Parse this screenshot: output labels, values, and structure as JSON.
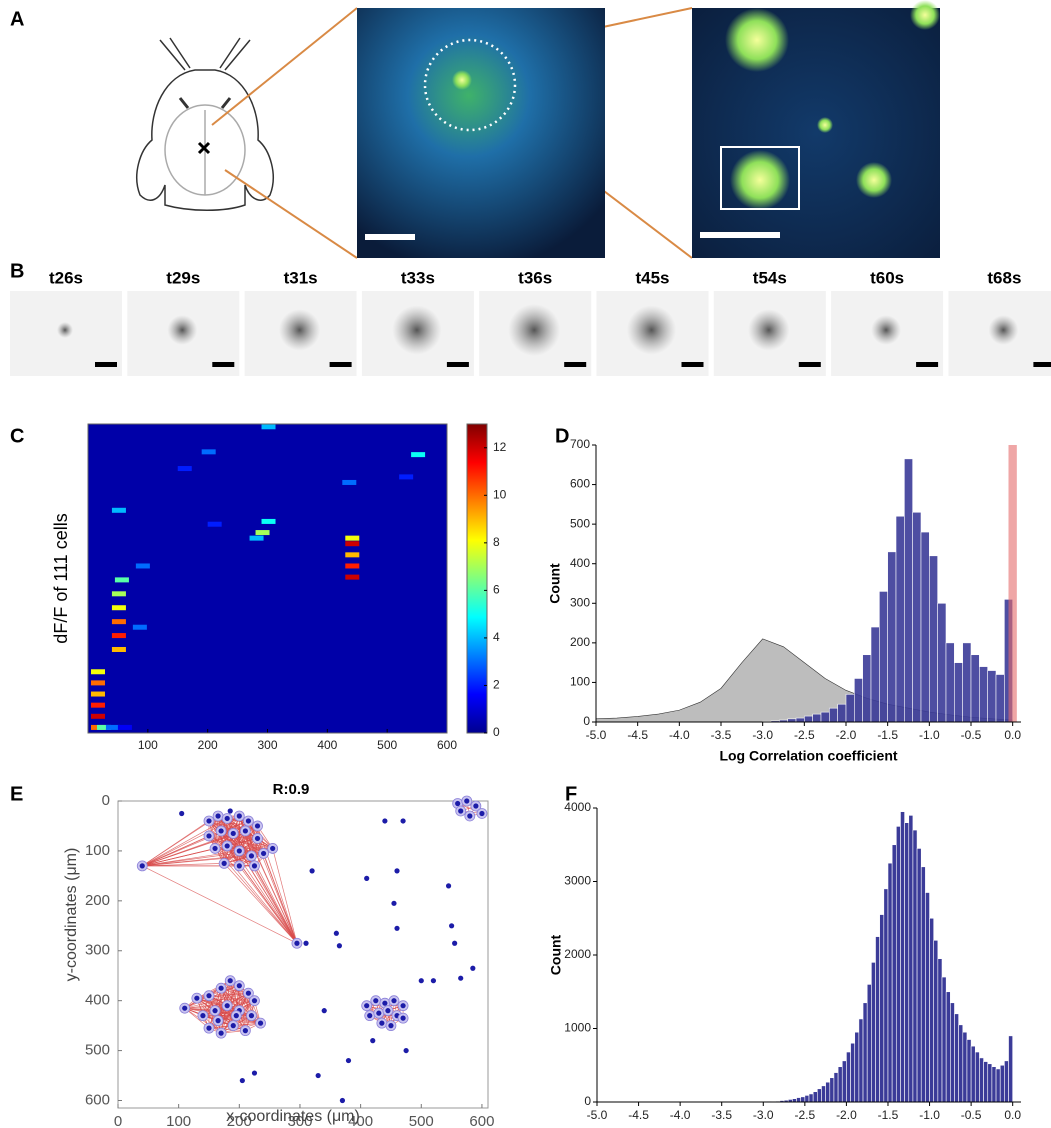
{
  "panels": [
    "A",
    "B",
    "C",
    "D",
    "E",
    "F"
  ],
  "time_labels": [
    "t26s",
    "t29s",
    "t31s",
    "t33s",
    "t36s",
    "t45s",
    "t54s",
    "t60s",
    "t68s"
  ],
  "chart_data": [
    {
      "type": "heatmap",
      "ylabel": "dF/F of 111 cells",
      "xlim": [
        0,
        600
      ],
      "xticks": [
        100,
        200,
        300,
        400,
        500,
        600
      ],
      "ylim": [
        0,
        111
      ],
      "clim": [
        0,
        13
      ],
      "cticks": [
        0,
        2,
        4,
        6,
        8,
        10,
        12
      ],
      "x": [
        5,
        15,
        30,
        50,
        5,
        5,
        5,
        5,
        5,
        40,
        40,
        40,
        40,
        40,
        45,
        280,
        270,
        290,
        430,
        430,
        430,
        430,
        430,
        40,
        200,
        75,
        425,
        540,
        190,
        290,
        520,
        150,
        80
      ],
      "y": [
        2,
        2,
        2,
        2,
        6,
        10,
        14,
        18,
        22,
        30,
        35,
        40,
        45,
        50,
        55,
        72,
        70,
        76,
        56,
        60,
        64,
        68,
        70,
        80,
        75,
        38,
        90,
        100,
        101,
        110,
        92,
        95,
        60
      ],
      "values": [
        10,
        6,
        3,
        1.5,
        12,
        11,
        9,
        10,
        8,
        9,
        11,
        10,
        8,
        7,
        6,
        7,
        4,
        5,
        12,
        11,
        9,
        12,
        8,
        4,
        2,
        3,
        3,
        5,
        3,
        4,
        2,
        2,
        3
      ]
    },
    {
      "type": "histogram",
      "xlabel": "Log Correlation coefficient",
      "ylabel": "Count",
      "xlim": [
        -5.0,
        0.1
      ],
      "xticks": [
        {
          "value": -5,
          "label": "-5.0"
        },
        {
          "value": -4.5,
          "label": "-4.5"
        },
        {
          "value": -4,
          "label": "-4.0"
        },
        {
          "value": -3.5,
          "label": "-3.5"
        },
        {
          "value": -3,
          "label": "-3.0"
        },
        {
          "value": -2.5,
          "label": "-2.5"
        },
        {
          "value": -2,
          "label": "-2.0"
        },
        {
          "value": -1.5,
          "label": "-1.5"
        },
        {
          "value": -1,
          "label": "-1.0"
        },
        {
          "value": -0.5,
          "label": "-0.5"
        },
        {
          "value": 0,
          "label": "0.0"
        }
      ],
      "ylim": [
        0,
        700
      ],
      "yticks": [
        0,
        100,
        200,
        300,
        400,
        500,
        600,
        700
      ],
      "bins": [
        -3.0,
        -2.9,
        -2.8,
        -2.7,
        -2.6,
        -2.5,
        -2.4,
        -2.3,
        -2.2,
        -2.1,
        -2.0,
        -1.9,
        -1.8,
        -1.7,
        -1.6,
        -1.5,
        -1.4,
        -1.3,
        -1.2,
        -1.1,
        -1.0,
        -0.9,
        -0.8,
        -0.7,
        -0.6,
        -0.5,
        -0.4,
        -0.3,
        -0.2,
        -0.1,
        0.0
      ],
      "values": [
        2,
        3,
        5,
        8,
        10,
        15,
        20,
        25,
        35,
        45,
        70,
        110,
        170,
        240,
        330,
        430,
        520,
        665,
        530,
        480,
        420,
        300,
        200,
        150,
        200,
        170,
        140,
        130,
        120,
        310
      ],
      "color": "#3b3b98",
      "area": {
        "x": [
          -5.0,
          -4.75,
          -4.5,
          -4.25,
          -4.0,
          -3.75,
          -3.5,
          -3.25,
          -3.0,
          -2.75,
          -2.5,
          -2.25,
          -2.0,
          -1.75,
          -1.5,
          -1.25,
          -1.0,
          -0.75,
          -0.5,
          -0.25,
          0.0
        ],
        "values": [
          8,
          10,
          14,
          20,
          30,
          50,
          85,
          150,
          210,
          190,
          150,
          110,
          80,
          60,
          45,
          35,
          25,
          18,
          12,
          8,
          5
        ],
        "color": "#bdbdbd"
      },
      "highlight": {
        "xlim": [
          -0.05,
          0.05
        ],
        "color": "#e46a6a"
      }
    },
    {
      "type": "scatter",
      "title": "R:0.9",
      "xlabel": "x-coordinates (μm)",
      "ylabel": "y-coordinates (μm)",
      "xlim": [
        0,
        610
      ],
      "xticks": [
        0,
        100,
        200,
        300,
        400,
        500,
        600
      ],
      "ylim": [
        0,
        615
      ],
      "yticks": [
        0,
        100,
        200,
        300,
        400,
        500,
        600
      ],
      "y_reversed": true,
      "color": "#1c1ca8",
      "edge_color": "#d84a4a",
      "x": [
        40,
        295,
        150,
        165,
        180,
        200,
        215,
        230,
        150,
        170,
        190,
        210,
        230,
        255,
        160,
        180,
        200,
        220,
        240,
        175,
        200,
        225,
        110,
        130,
        150,
        170,
        185,
        200,
        215,
        225,
        140,
        160,
        180,
        200,
        220,
        235,
        150,
        170,
        190,
        210,
        165,
        195,
        410,
        425,
        440,
        455,
        470,
        415,
        430,
        445,
        460,
        435,
        450,
        470,
        560,
        575,
        590,
        600,
        580,
        565,
        105,
        185,
        320,
        310,
        330,
        340,
        360,
        365,
        370,
        380,
        410,
        420,
        440,
        455,
        460,
        460,
        470,
        475,
        500,
        520,
        545,
        550,
        555,
        565,
        585,
        205,
        225
      ],
      "y": [
        130,
        285,
        40,
        30,
        35,
        30,
        40,
        50,
        70,
        60,
        65,
        60,
        75,
        95,
        95,
        90,
        100,
        110,
        105,
        125,
        130,
        130,
        415,
        395,
        390,
        375,
        360,
        370,
        385,
        400,
        430,
        420,
        410,
        420,
        430,
        445,
        455,
        465,
        450,
        460,
        440,
        430,
        410,
        400,
        405,
        400,
        410,
        430,
        425,
        420,
        430,
        445,
        450,
        435,
        5,
        0,
        10,
        25,
        30,
        20,
        25,
        20,
        140,
        285,
        550,
        420,
        265,
        290,
        600,
        520,
        155,
        480,
        40,
        205,
        255,
        140,
        40,
        500,
        360,
        360,
        170,
        250,
        285,
        355,
        335,
        560,
        545
      ],
      "clusters": [
        [
          0,
          1,
          2,
          3,
          4,
          5,
          6,
          7,
          8,
          9,
          10,
          11,
          12,
          13,
          14,
          15,
          16,
          17,
          18,
          19,
          20,
          21
        ],
        [
          22,
          23,
          24,
          25,
          26,
          27,
          28,
          29,
          30,
          31,
          32,
          33,
          34,
          35,
          36,
          37,
          38,
          39,
          40,
          41
        ],
        [
          42,
          43,
          44,
          45,
          46,
          47,
          48,
          49,
          50,
          51,
          52,
          53
        ],
        [
          54,
          55,
          56,
          57,
          58,
          59
        ]
      ]
    },
    {
      "type": "histogram",
      "xlabel": "Log Correlation coefficient",
      "ylabel": "Count",
      "xlim": [
        -5.0,
        0.1
      ],
      "xticks": [
        {
          "value": -5,
          "label": "-5.0"
        },
        {
          "value": -4.5,
          "label": "-4.5"
        },
        {
          "value": -4,
          "label": "-4.0"
        },
        {
          "value": -3.5,
          "label": "-3.5"
        },
        {
          "value": -3,
          "label": "-3.0"
        },
        {
          "value": -2.5,
          "label": "-2.5"
        },
        {
          "value": -2,
          "label": "-2.0"
        },
        {
          "value": -1.5,
          "label": "-1.5"
        },
        {
          "value": -1,
          "label": "-1.0"
        },
        {
          "value": -0.5,
          "label": "-0.5"
        },
        {
          "value": 0,
          "label": "0.0"
        }
      ],
      "ylim": [
        0,
        4000
      ],
      "yticks": [
        0,
        1000,
        2000,
        3000,
        4000
      ],
      "bins": [
        -3.0,
        -2.95,
        -2.9,
        -2.85,
        -2.8,
        -2.75,
        -2.7,
        -2.65,
        -2.6,
        -2.55,
        -2.5,
        -2.45,
        -2.4,
        -2.35,
        -2.3,
        -2.25,
        -2.2,
        -2.15,
        -2.1,
        -2.05,
        -2.0,
        -1.95,
        -1.9,
        -1.85,
        -1.8,
        -1.75,
        -1.7,
        -1.65,
        -1.6,
        -1.55,
        -1.5,
        -1.45,
        -1.4,
        -1.35,
        -1.3,
        -1.25,
        -1.2,
        -1.15,
        -1.1,
        -1.05,
        -1.0,
        -0.95,
        -0.9,
        -0.85,
        -0.8,
        -0.75,
        -0.7,
        -0.65,
        -0.6,
        -0.55,
        -0.5,
        -0.45,
        -0.4,
        -0.35,
        -0.3,
        -0.25,
        -0.2,
        -0.15,
        -0.1,
        -0.05,
        0.0
      ],
      "values": [
        5,
        8,
        10,
        12,
        20,
        25,
        35,
        45,
        60,
        70,
        90,
        110,
        140,
        180,
        220,
        270,
        330,
        400,
        480,
        560,
        680,
        800,
        950,
        1130,
        1350,
        1600,
        1900,
        2250,
        2550,
        2900,
        3250,
        3500,
        3750,
        3950,
        3800,
        3900,
        3700,
        3450,
        3200,
        2850,
        2500,
        2200,
        1950,
        1700,
        1500,
        1350,
        1200,
        1050,
        950,
        850,
        760,
        680,
        600,
        550,
        520,
        480,
        450,
        500,
        560,
        900
      ],
      "color": "#3b3b98"
    }
  ]
}
